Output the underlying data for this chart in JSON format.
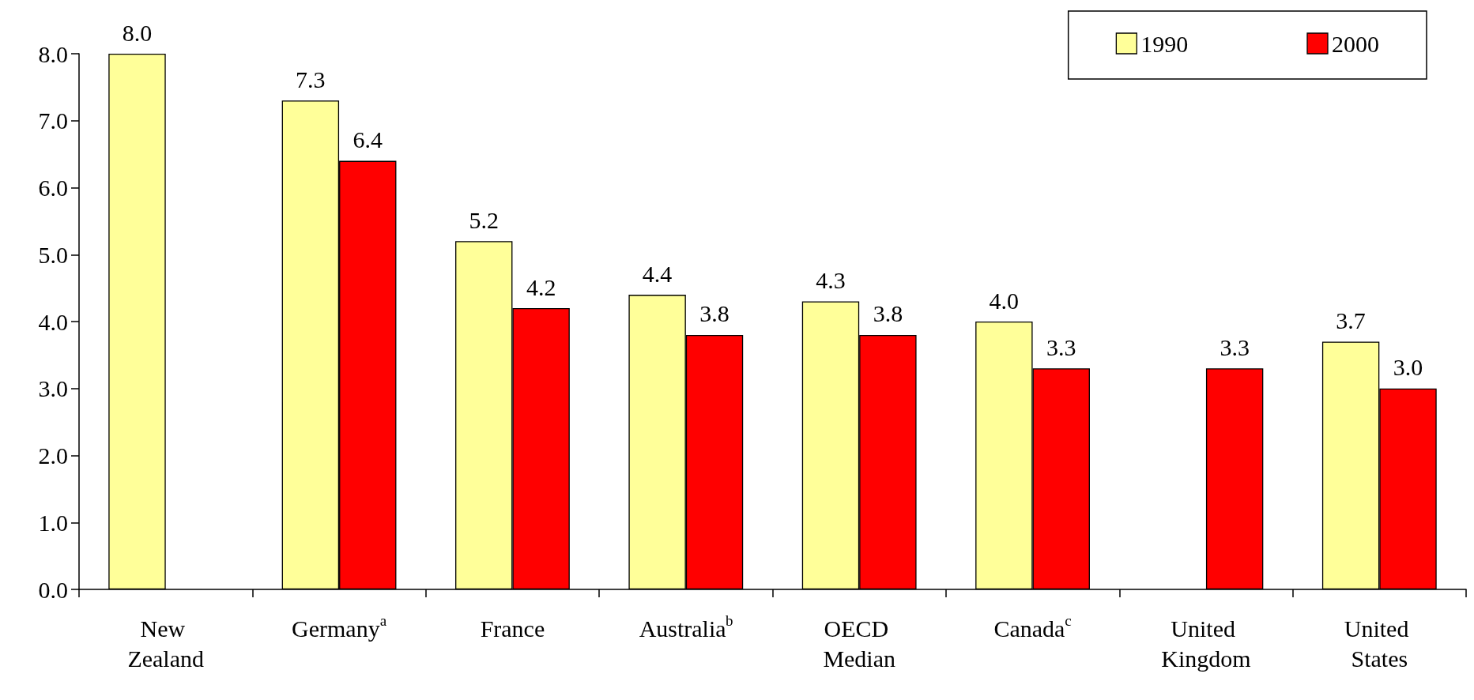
{
  "chart_data": {
    "type": "bar",
    "categories": [
      "New Zealand",
      "Germany$^{a}$",
      "France",
      "Australia$^{b}$",
      "OECD Median",
      "Canada$^{c}$",
      "United Kingdom",
      "United States"
    ],
    "series": [
      {
        "name": "1990",
        "color": "#ffff99",
        "values": [
          8.0,
          7.3,
          5.2,
          4.4,
          4.3,
          4.0,
          null,
          3.7
        ],
        "value_labels": [
          "8.0",
          "7.3",
          "5.2",
          "4.4",
          "4.3",
          "4.0",
          null,
          "3.7"
        ]
      },
      {
        "name": "2000",
        "color": "#ff0000",
        "values": [
          null,
          6.4,
          4.2,
          3.8,
          3.8,
          3.3,
          3.3,
          3.0
        ],
        "value_labels": [
          null,
          "6.4",
          "4.2",
          "3.8",
          "3.8",
          "3.3",
          "3.3",
          "3.0"
        ]
      }
    ],
    "ylim": [
      0,
      8
    ],
    "yticks": [
      {
        "value": 0,
        "label": "0.0"
      },
      {
        "value": 1,
        "label": "1.0"
      },
      {
        "value": 2,
        "label": "2.0"
      },
      {
        "value": 3,
        "label": "3.0"
      },
      {
        "value": 4,
        "label": "4.0"
      },
      {
        "value": 5,
        "label": "5.0"
      },
      {
        "value": 6,
        "label": "6.0"
      },
      {
        "value": 7,
        "label": "7.0"
      },
      {
        "value": 8,
        "label": "8.0"
      }
    ],
    "grid": false,
    "legend": "top right"
  }
}
